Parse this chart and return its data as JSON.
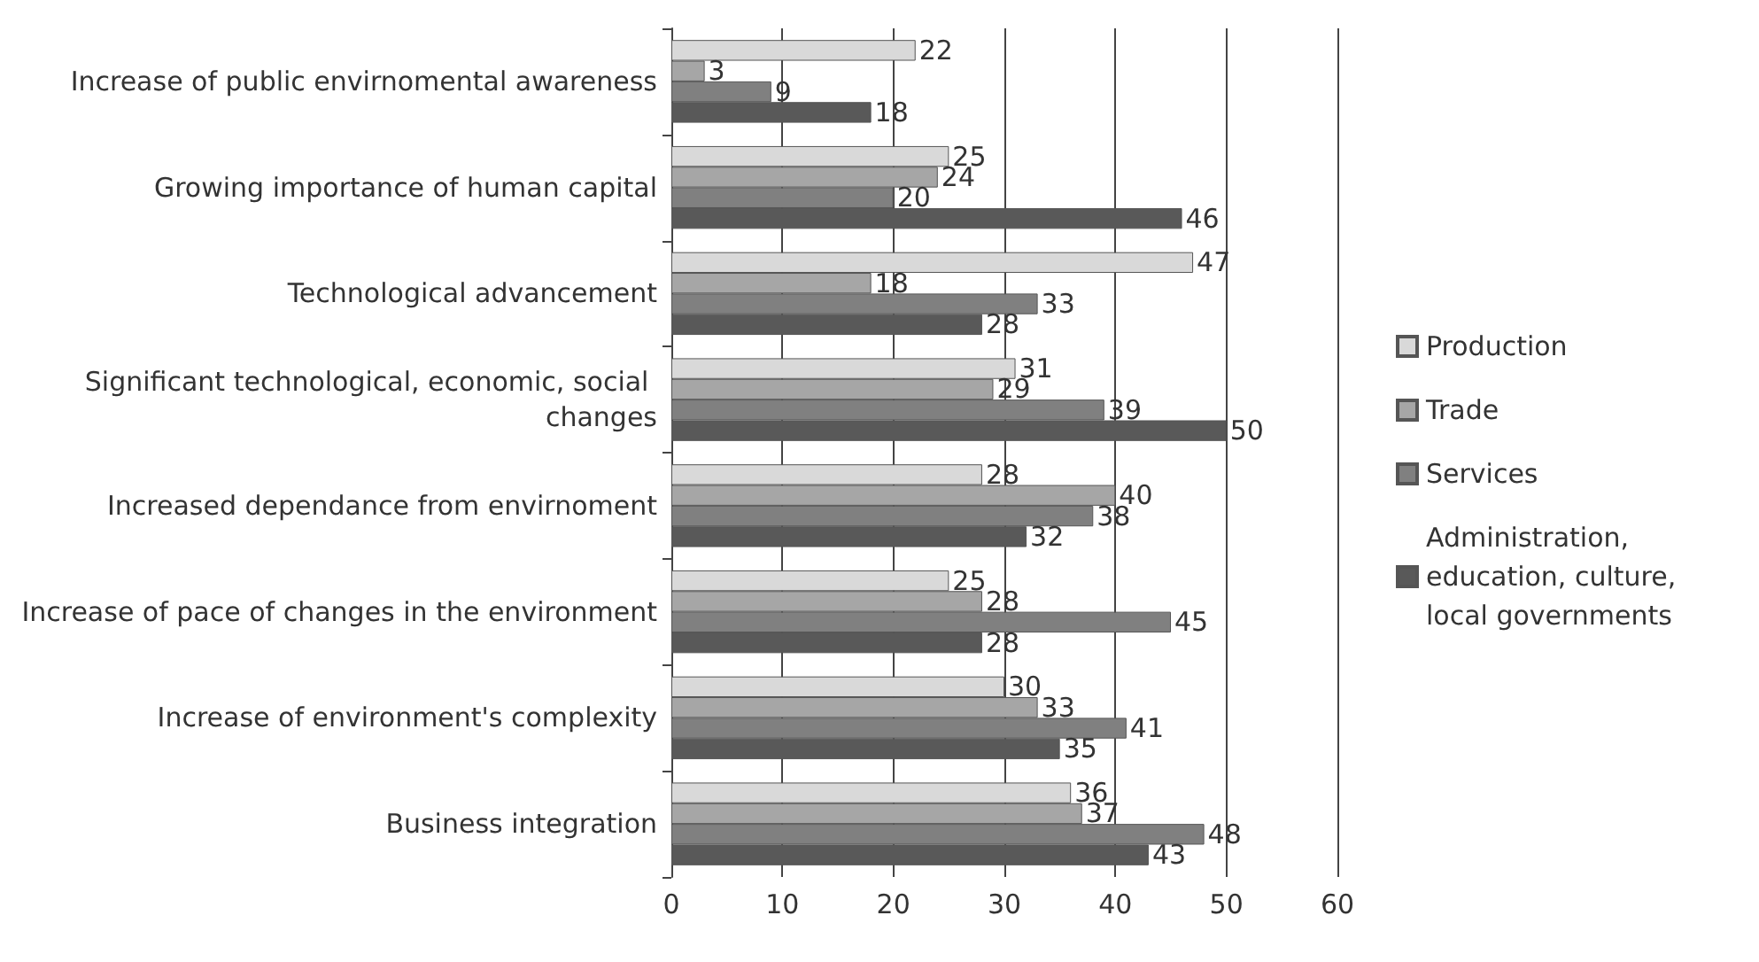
{
  "chart_data": {
    "type": "bar",
    "orientation": "horizontal",
    "categories": [
      "Increase of public envirnomental awareness",
      "Growing importance of human capital",
      "Technological advancement",
      "Significant technological, economic, social changes",
      "Increased dependance from envirnoment",
      "Increase of pace of changes in the environment",
      "Increase of environment's complexity",
      "Business integration"
    ],
    "series": [
      {
        "name": "Production",
        "color": "#d9d9d9",
        "values": [
          22,
          25,
          47,
          31,
          28,
          25,
          30,
          36
        ]
      },
      {
        "name": "Trade",
        "color": "#a6a6a6",
        "values": [
          3,
          24,
          18,
          29,
          40,
          28,
          33,
          37
        ]
      },
      {
        "name": "Services",
        "color": "#808080",
        "values": [
          9,
          20,
          33,
          39,
          38,
          45,
          41,
          48
        ]
      },
      {
        "name": "Administration, education, culture, local governments",
        "color": "#595959",
        "values": [
          18,
          46,
          28,
          50,
          32,
          28,
          35,
          43
        ]
      }
    ],
    "xlim": [
      0,
      60
    ],
    "xticks": [
      0,
      10,
      20,
      30,
      40,
      50,
      60
    ],
    "grid": "x",
    "legend": "right",
    "data_labels": true
  }
}
